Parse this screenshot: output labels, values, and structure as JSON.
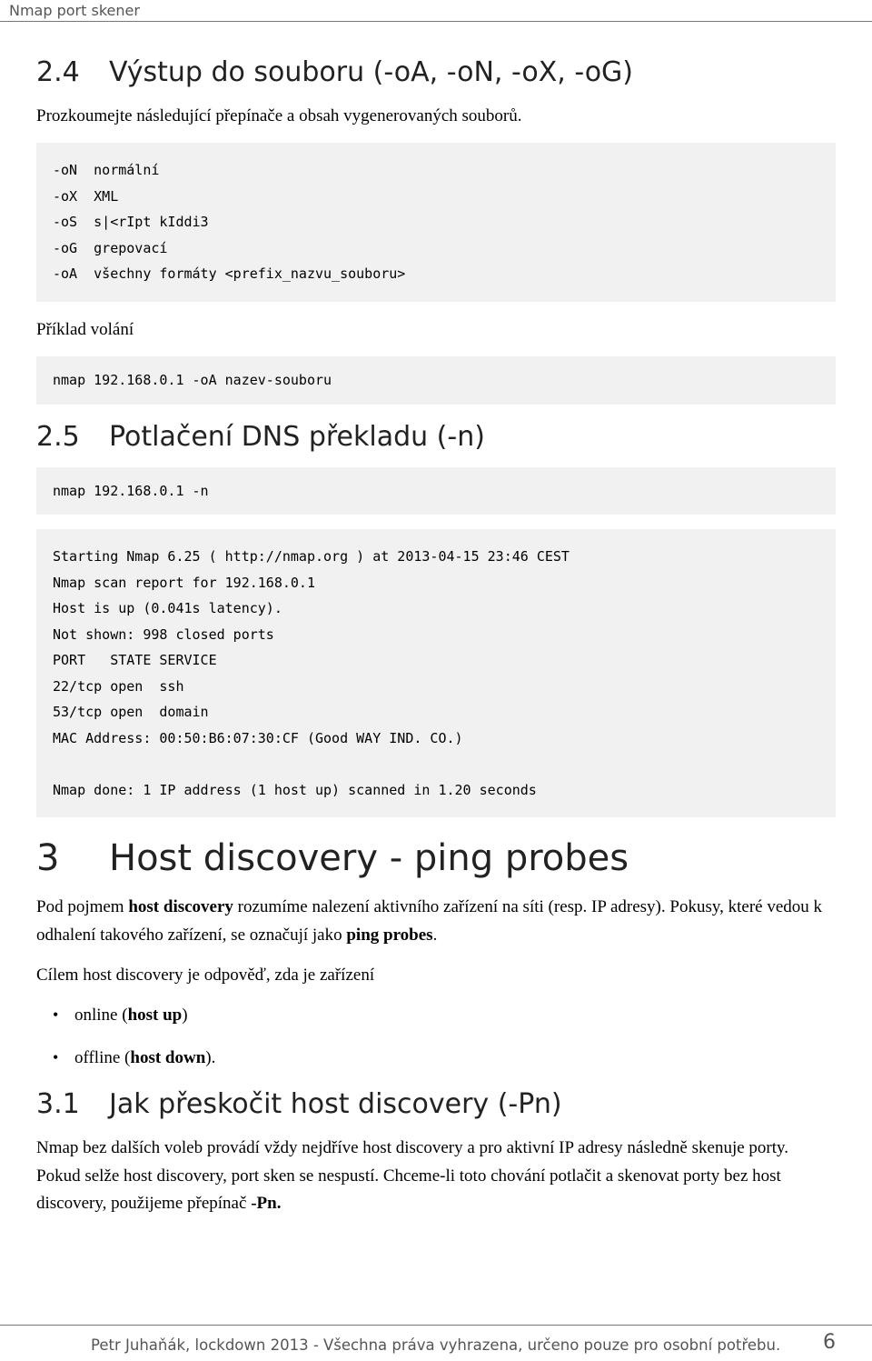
{
  "header": {
    "title": "Nmap port skener"
  },
  "sections": {
    "s24": {
      "num": "2.4",
      "title": "Výstup do souboru (-oA, -oN, -oX, -oG)",
      "intro": "Prozkoumejte následující přepínače a obsah vygenerovaných souborů.",
      "code1": "-oN  normální\n-oX  XML\n-oS  s|<rIpt kIddi3\n-oG  grepovací\n-oA  všechny formáty <prefix_nazvu_souboru>",
      "label_priklad": "Příklad volání",
      "code2": "nmap 192.168.0.1 -oA nazev-souboru"
    },
    "s25": {
      "num": "2.5",
      "title": "Potlačení DNS překladu (-n)",
      "code1": "nmap 192.168.0.1 -n",
      "code2": "Starting Nmap 6.25 ( http://nmap.org ) at 2013-04-15 23:46 CEST\nNmap scan report for 192.168.0.1\nHost is up (0.041s latency).\nNot shown: 998 closed ports\nPORT   STATE SERVICE\n22/tcp open  ssh\n53/tcp open  domain\nMAC Address: 00:50:B6:07:30:CF (Good WAY IND. CO.)\n\nNmap done: 1 IP address (1 host up) scanned in 1.20 seconds"
    },
    "s3": {
      "num": "3",
      "title": "Host discovery - ping probes",
      "p1a": "Pod pojmem ",
      "p1b": "host discovery",
      "p1c": " rozumíme nalezení aktivního zařízení na síti (resp. IP adresy). Pokusy, které vedou k odhalení takového zařízení, se označují jako ",
      "p1d": "ping probes",
      "p1e": ".",
      "p2": "Cílem host discovery je odpověď, zda je zařízení",
      "li1a": "online (",
      "li1b": "host up",
      "li1c": ")",
      "li2a": "offline (",
      "li2b": "host down",
      "li2c": ")."
    },
    "s31": {
      "num": "3.1",
      "title": "Jak přeskočit host discovery (-Pn)",
      "p1a": "Nmap bez dalších voleb provádí vždy nejdříve host discovery a pro aktivní IP adresy následně skenuje porty. Pokud selže host discovery, port sken se nespustí. Chceme-li toto chování potlačit a skenovat porty bez host discovery, použijeme přepínač ",
      "p1b": "-Pn.",
      "p1c": ""
    }
  },
  "footer": {
    "text": "Petr Juhaňák, lockdown 2013 - Všechna práva vyhrazena, určeno pouze pro osobní potřebu.",
    "page": "6"
  }
}
